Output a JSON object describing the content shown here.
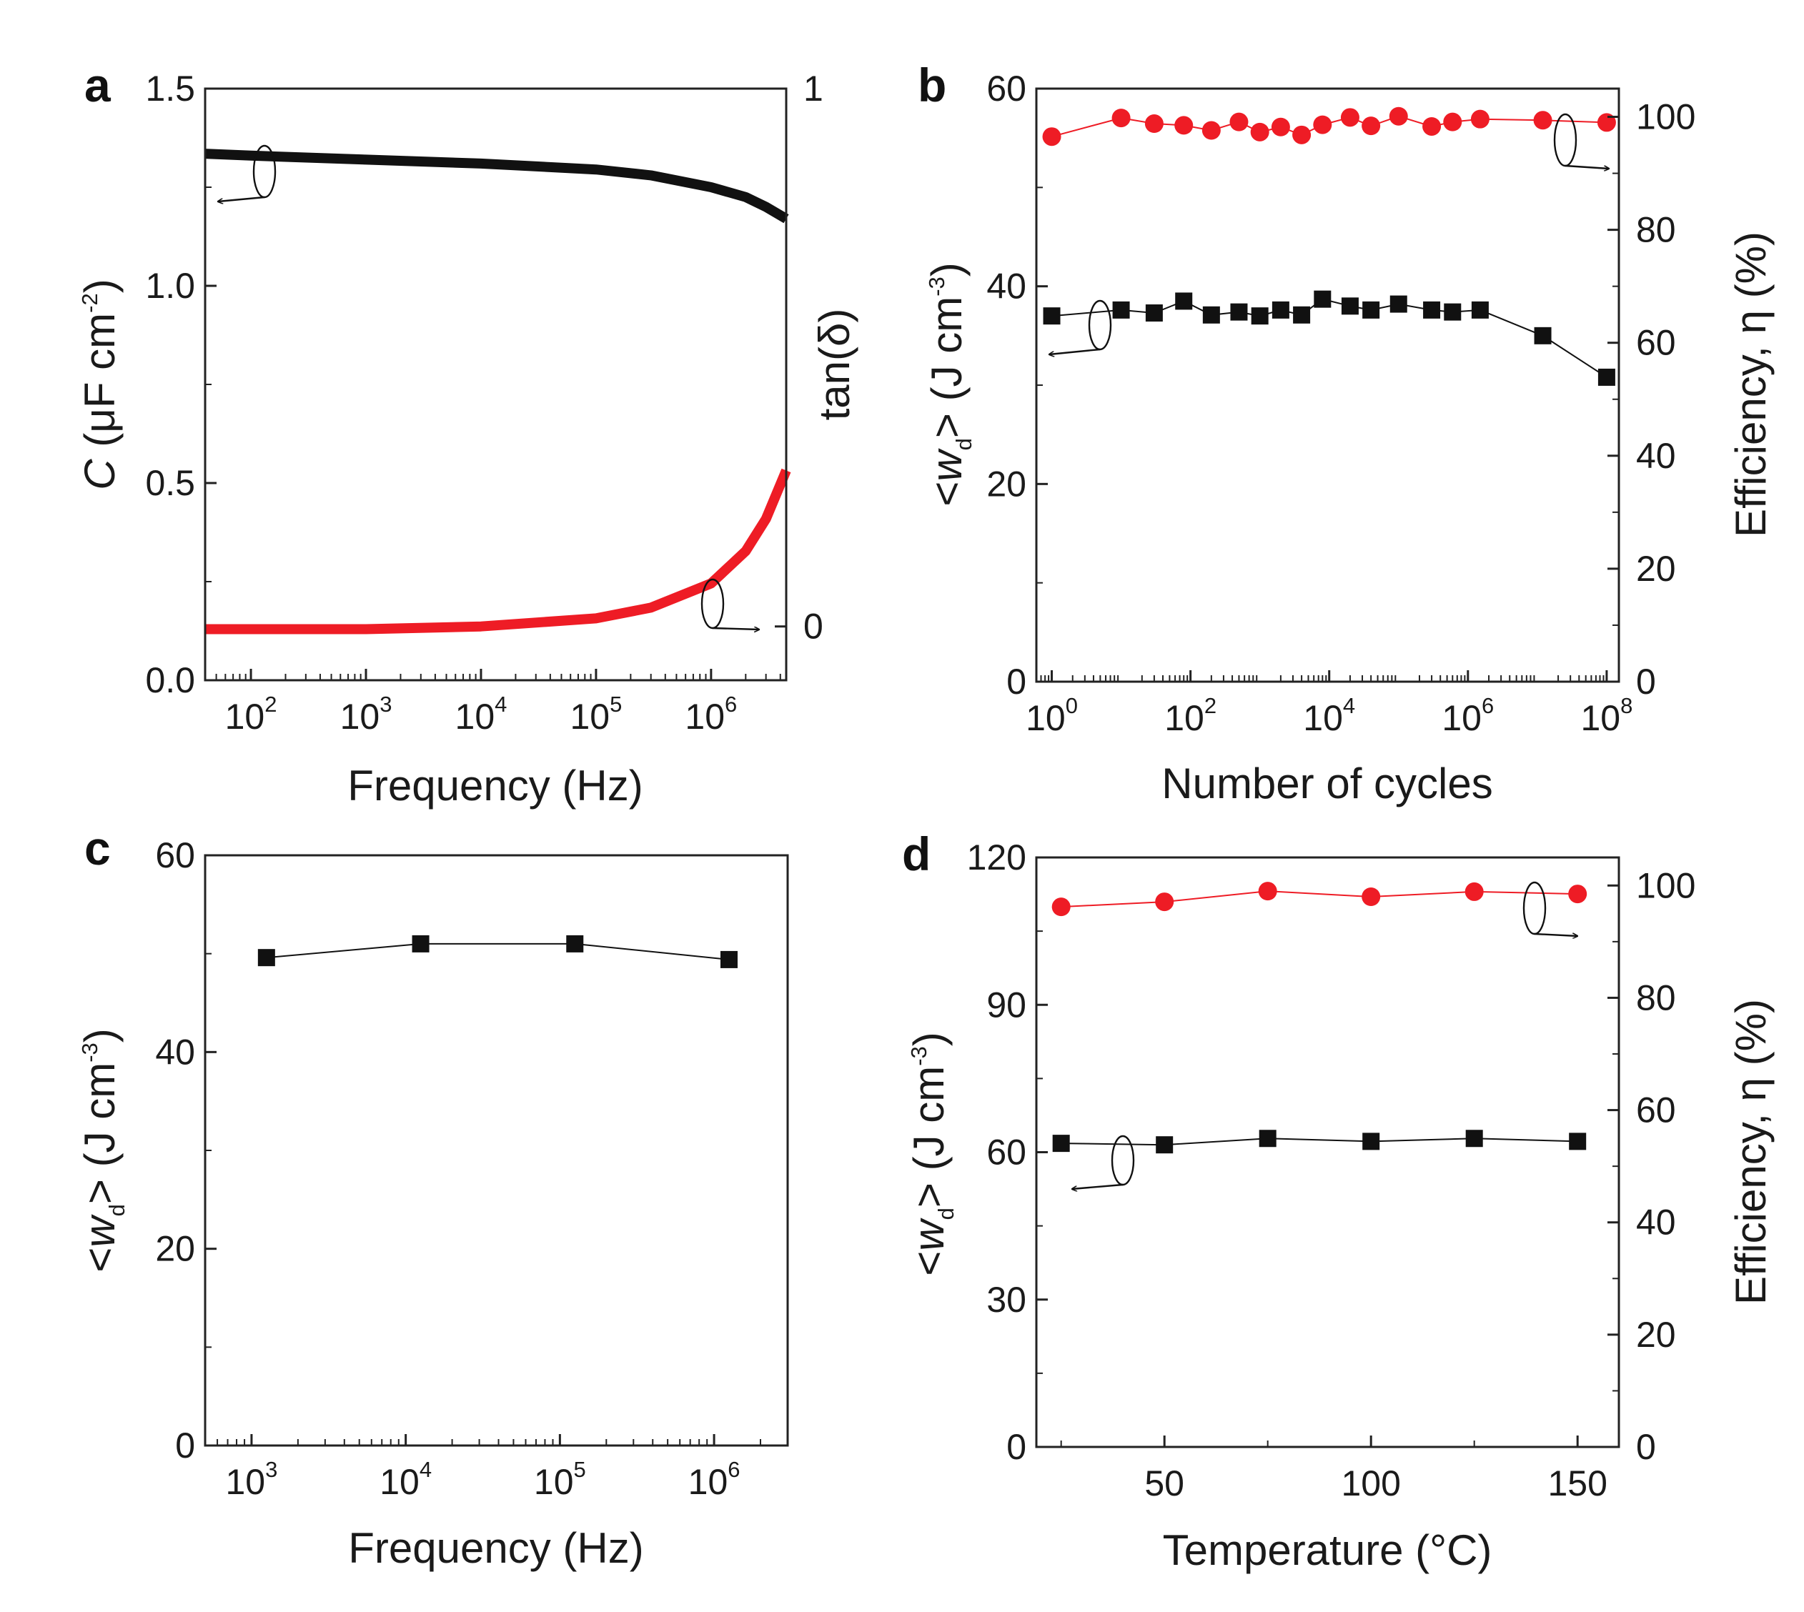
{
  "colors": {
    "black_series": "#111111",
    "red_series": "#ee1c25",
    "axis": "#222222",
    "text": "#1a1a1a"
  },
  "chart_data": [
    {
      "panel": "a",
      "type": "line",
      "x_scale": "log",
      "xlabel": "Frequency (Hz)",
      "ylabel_left": "C (μF cm-2)",
      "ylabel_right": "tan(δ)",
      "xlim": [
        40,
        4500000
      ],
      "ylim_left": [
        0,
        1.5
      ],
      "ylim_right": [
        -0.1,
        1.0
      ],
      "x_ticks": [
        {
          "base": "10",
          "exp": "2",
          "value": 100
        },
        {
          "base": "10",
          "exp": "3",
          "value": 1000
        },
        {
          "base": "10",
          "exp": "4",
          "value": 10000
        },
        {
          "base": "10",
          "exp": "5",
          "value": 100000
        },
        {
          "base": "10",
          "exp": "6",
          "value": 1000000
        }
      ],
      "y_ticks_left": [
        "0.0",
        "0.5",
        "1.0",
        "1.5"
      ],
      "y_ticks_right": [
        "0",
        "1"
      ],
      "series": [
        {
          "name": "C",
          "axis": "left",
          "color": "#111111",
          "x": [
            40,
            100,
            1000,
            10000,
            100000,
            300000,
            1000000,
            2000000,
            3000000,
            4500000
          ],
          "y": [
            1.335,
            1.33,
            1.32,
            1.31,
            1.295,
            1.28,
            1.25,
            1.225,
            1.2,
            1.17
          ]
        },
        {
          "name": "tan(δ)",
          "axis": "right",
          "color": "#ee1c25",
          "x": [
            40,
            1000,
            10000,
            100000,
            300000,
            1000000,
            2000000,
            3000000,
            4500000
          ],
          "y": [
            -0.005,
            -0.005,
            0.0,
            0.015,
            0.035,
            0.08,
            0.14,
            0.2,
            0.29
          ]
        }
      ]
    },
    {
      "panel": "b",
      "type": "line",
      "x_scale": "log",
      "xlabel": "Number of cycles",
      "ylabel_left": "<wd> (J cm-3)",
      "ylabel_right": "Efficiency, η (%)",
      "xlim": [
        0.6,
        150000000
      ],
      "ylim_left": [
        0,
        60
      ],
      "ylim_right": [
        0,
        105
      ],
      "x_ticks": [
        {
          "base": "10",
          "exp": "0",
          "value": 1
        },
        {
          "base": "10",
          "exp": "2",
          "value": 100
        },
        {
          "base": "10",
          "exp": "4",
          "value": 10000
        },
        {
          "base": "10",
          "exp": "6",
          "value": 1000000
        },
        {
          "base": "10",
          "exp": "8",
          "value": 100000000
        }
      ],
      "y_ticks_left": [
        "0",
        "20",
        "40",
        "60"
      ],
      "y_ticks_right": [
        "0",
        "20",
        "40",
        "60",
        "80",
        "100"
      ],
      "series": [
        {
          "name": "<wd>",
          "axis": "left",
          "color": "#111111",
          "marker": "square",
          "x": [
            1,
            10,
            30,
            80,
            200,
            500,
            1000,
            2000,
            4000,
            8000,
            20000,
            40000,
            100000,
            300000,
            600000,
            1500000,
            12000000,
            100000000
          ],
          "y": [
            37.0,
            37.6,
            37.3,
            38.5,
            37.1,
            37.4,
            37.0,
            37.6,
            37.1,
            38.7,
            38.0,
            37.6,
            38.2,
            37.6,
            37.4,
            37.6,
            35.0,
            30.8
          ]
        },
        {
          "name": "Efficiency",
          "axis": "right",
          "color": "#ee1c25",
          "marker": "circle",
          "x": [
            1,
            10,
            30,
            80,
            200,
            500,
            1000,
            2000,
            4000,
            8000,
            20000,
            40000,
            100000,
            300000,
            600000,
            1500000,
            12000000,
            100000000
          ],
          "y": [
            96.5,
            99.8,
            98.8,
            98.5,
            97.6,
            99.1,
            97.3,
            98.2,
            96.8,
            98.6,
            99.9,
            98.4,
            100.1,
            98.3,
            99.1,
            99.6,
            99.4,
            99.0
          ]
        }
      ]
    },
    {
      "panel": "c",
      "type": "line",
      "x_scale": "log",
      "xlabel": "Frequency (Hz)",
      "ylabel_left": "<wd> (J cm-3)",
      "xlim": [
        500,
        3000000
      ],
      "ylim_left": [
        0,
        60
      ],
      "x_ticks": [
        {
          "base": "10",
          "exp": "3",
          "value": 1000
        },
        {
          "base": "10",
          "exp": "4",
          "value": 10000
        },
        {
          "base": "10",
          "exp": "5",
          "value": 100000
        },
        {
          "base": "10",
          "exp": "6",
          "value": 1000000
        }
      ],
      "y_ticks_left": [
        "0",
        "20",
        "40",
        "60"
      ],
      "series": [
        {
          "name": "<wd>",
          "axis": "left",
          "color": "#111111",
          "marker": "square",
          "x": [
            1250,
            12500,
            125000,
            1250000
          ],
          "y": [
            49.6,
            51.0,
            51.0,
            49.4
          ]
        }
      ]
    },
    {
      "panel": "d",
      "type": "line",
      "x_scale": "linear",
      "xlabel": "Temperature (°C)",
      "ylabel_left": "<wd> (J cm-3)",
      "ylabel_right": "Efficiency, η (%)",
      "xlim": [
        19,
        160
      ],
      "ylim_left": [
        0,
        120
      ],
      "ylim_right": [
        0,
        105
      ],
      "x_ticks": [
        {
          "label": "50",
          "value": 50
        },
        {
          "label": "100",
          "value": 100
        },
        {
          "label": "150",
          "value": 150
        }
      ],
      "y_ticks_left": [
        "0",
        "30",
        "60",
        "90",
        "120"
      ],
      "y_ticks_right": [
        "0",
        "20",
        "40",
        "60",
        "80",
        "100"
      ],
      "series": [
        {
          "name": "<wd>",
          "axis": "left",
          "color": "#111111",
          "marker": "square",
          "x": [
            25,
            50,
            75,
            100,
            125,
            150
          ],
          "y": [
            61.8,
            61.5,
            62.8,
            62.2,
            62.8,
            62.2
          ]
        },
        {
          "name": "Efficiency",
          "axis": "right",
          "color": "#ee1c25",
          "marker": "circle",
          "x": [
            25,
            50,
            75,
            100,
            125,
            150
          ],
          "y": [
            96.2,
            97.1,
            99.0,
            98.0,
            98.9,
            98.5
          ]
        }
      ]
    }
  ]
}
